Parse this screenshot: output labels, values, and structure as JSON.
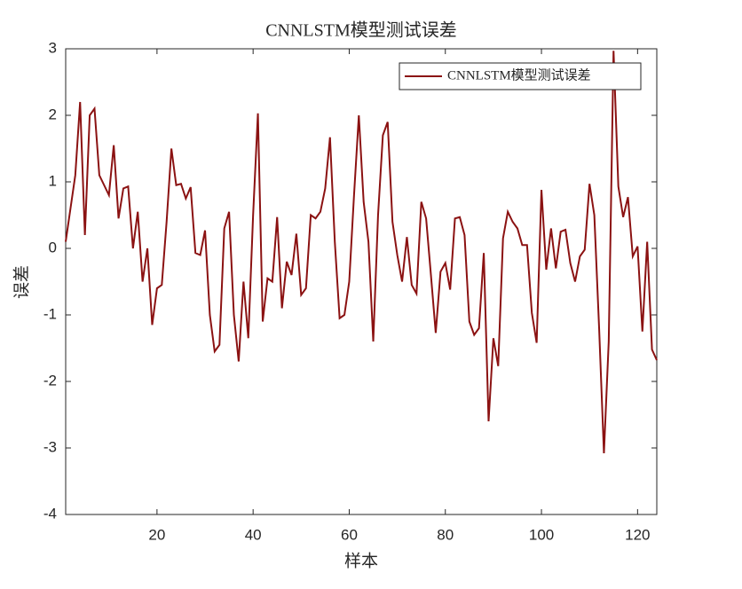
{
  "chart_data": {
    "type": "line",
    "title": "CNNLSTM模型测试误差",
    "xlabel": "样本",
    "ylabel": "误差",
    "x": [
      1,
      2,
      3,
      4,
      5,
      6,
      7,
      8,
      9,
      10,
      11,
      12,
      13,
      14,
      15,
      16,
      17,
      18,
      19,
      20,
      21,
      22,
      23,
      24,
      25,
      26,
      27,
      28,
      29,
      30,
      31,
      32,
      33,
      34,
      35,
      36,
      37,
      38,
      39,
      40,
      41,
      42,
      43,
      44,
      45,
      46,
      47,
      48,
      49,
      50,
      51,
      52,
      53,
      54,
      55,
      56,
      57,
      58,
      59,
      60,
      61,
      62,
      63,
      64,
      65,
      66,
      67,
      68,
      69,
      70,
      71,
      72,
      73,
      74,
      75,
      76,
      77,
      78,
      79,
      80,
      81,
      82,
      83,
      84,
      85,
      86,
      87,
      88,
      89,
      90,
      91,
      92,
      93,
      94,
      95,
      96,
      97,
      98,
      99,
      100,
      101,
      102,
      103,
      104,
      105,
      106,
      107,
      108,
      109,
      110,
      111,
      112,
      113,
      114,
      115,
      116,
      117,
      118,
      119,
      120,
      121,
      122,
      123,
      124
    ],
    "series": [
      {
        "name": "CNNLSTM模型测试误差",
        "color": "#8b1212",
        "values": [
          0.1,
          0.6,
          1.1,
          2.2,
          0.2,
          2.0,
          2.1,
          1.1,
          0.95,
          0.8,
          1.55,
          0.45,
          0.9,
          0.93,
          0.0,
          0.55,
          -0.5,
          0.0,
          -1.15,
          -0.6,
          -0.55,
          0.4,
          1.5,
          0.95,
          0.97,
          0.75,
          0.92,
          -0.07,
          -0.1,
          0.27,
          -1.0,
          -1.55,
          -1.45,
          0.3,
          0.55,
          -1.0,
          -1.7,
          -0.5,
          -1.35,
          0.5,
          2.03,
          -1.1,
          -0.45,
          -0.5,
          0.47,
          -0.9,
          -0.2,
          -0.4,
          0.22,
          -0.7,
          -0.6,
          0.5,
          0.45,
          0.55,
          0.9,
          1.67,
          0.1,
          -1.05,
          -1.0,
          -0.5,
          0.8,
          2.0,
          0.7,
          0.1,
          -1.4,
          0.5,
          1.7,
          1.9,
          0.4,
          -0.1,
          -0.5,
          0.17,
          -0.55,
          -0.68,
          0.7,
          0.45,
          -0.4,
          -1.27,
          -0.35,
          -0.22,
          -0.62,
          0.45,
          0.47,
          0.2,
          -1.1,
          -1.3,
          -1.2,
          -0.07,
          -2.6,
          -1.35,
          -1.77,
          0.15,
          0.55,
          0.4,
          0.3,
          0.05,
          0.05,
          -0.97,
          -1.42,
          0.88,
          -0.32,
          0.3,
          -0.3,
          0.25,
          0.28,
          -0.22,
          -0.5,
          -0.12,
          -0.02,
          0.97,
          0.5,
          -1.2,
          -3.08,
          -1.4,
          2.97,
          0.93,
          0.47,
          0.77,
          -0.12,
          0.03,
          -1.25,
          0.1,
          -1.52,
          -1.68
        ]
      }
    ],
    "xlim": [
      1,
      124
    ],
    "ylim": [
      -4,
      3
    ],
    "xticks": [
      20,
      40,
      60,
      80,
      100,
      120
    ],
    "yticks": [
      -4,
      -3,
      -2,
      -1,
      0,
      1,
      2,
      3
    ],
    "legend": "upper right"
  }
}
